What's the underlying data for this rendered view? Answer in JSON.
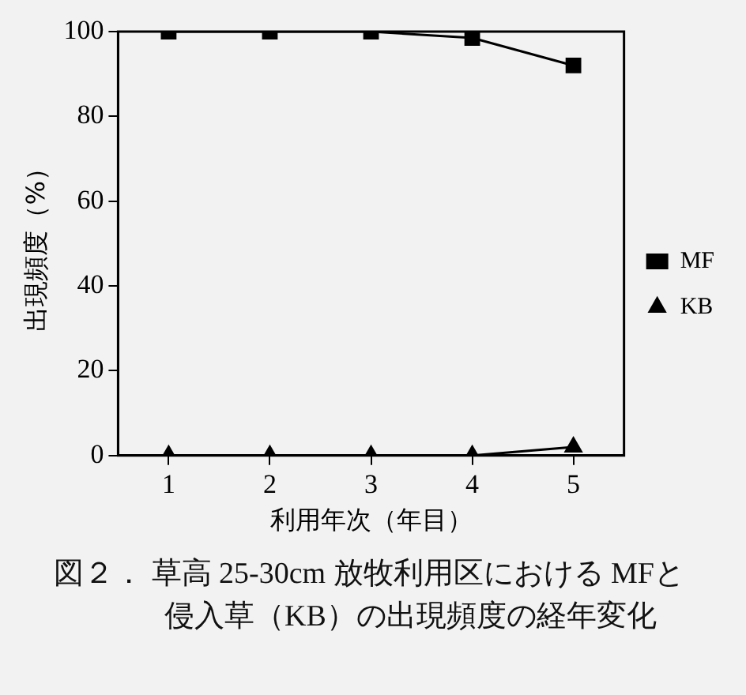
{
  "chart_data": {
    "type": "line",
    "title": "図２． 草高 25-30cm 放牧利用区における MFと侵入草（KB）の出現頻度の経年変化",
    "xlabel": "利用年次（年目）",
    "ylabel": "出現頻度（%）",
    "categories": [
      "1",
      "2",
      "3",
      "4",
      "5"
    ],
    "series": [
      {
        "name": "MF",
        "color": "#000000",
        "marker": "square",
        "values": [
          100,
          100,
          100,
          98.5,
          92
        ]
      },
      {
        "name": "KB",
        "color": "#000000",
        "marker": "triangle",
        "values": [
          0,
          0,
          0,
          0,
          2
        ]
      }
    ],
    "ylim": [
      0,
      100
    ],
    "yticks": [
      0,
      20,
      40,
      60,
      80,
      100
    ],
    "grid": false,
    "legend": "right",
    "line_style": "solid"
  }
}
